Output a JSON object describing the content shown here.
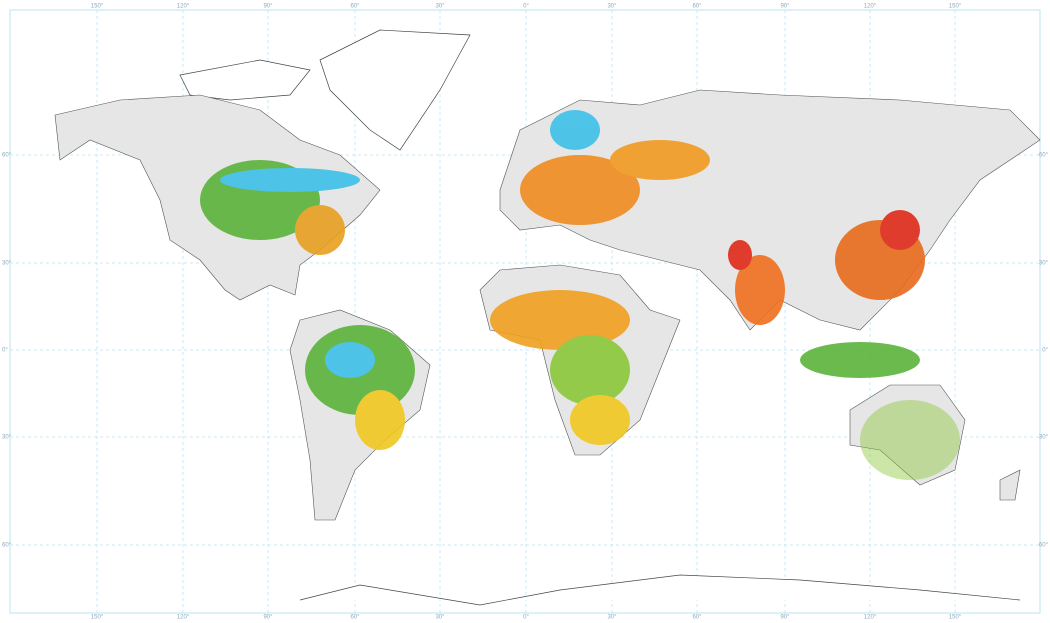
{
  "graticule": {
    "top_labels": [
      "150°",
      "120°",
      "90°",
      "60°",
      "30°",
      "0°",
      "30°",
      "60°",
      "90°",
      "120°",
      "150°"
    ],
    "bottom_labels": [
      "150°",
      "120°",
      "90°",
      "60°",
      "30°",
      "0°",
      "30°",
      "60°",
      "90°",
      "120°",
      "150°"
    ],
    "left_labels": [
      "60°",
      "30°",
      "0°",
      "30°",
      "60°"
    ],
    "right_labels": [
      "60°",
      "30°",
      "0°",
      "30°",
      "60°"
    ]
  }
}
